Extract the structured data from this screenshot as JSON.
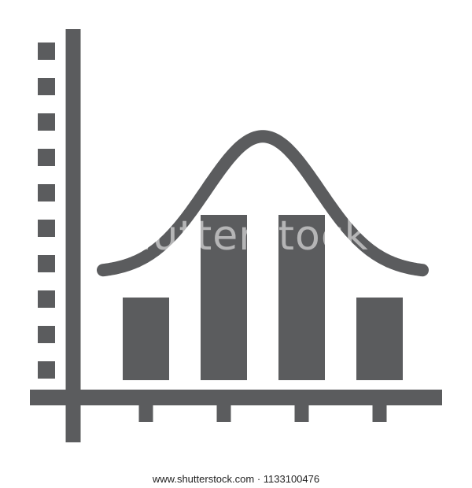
{
  "colors": {
    "icon": "#5b5c5e",
    "background": "#ffffff",
    "watermark_text": "#222222"
  },
  "chart_data": {
    "type": "bar",
    "categories": [
      "",
      "",
      "",
      ""
    ],
    "values": [
      2,
      4,
      4,
      2
    ],
    "ylim": [
      0,
      4.8
    ],
    "grid": false,
    "legend": "none",
    "y_ticks": [
      1,
      2,
      3,
      4,
      5,
      6,
      7,
      8,
      9,
      10
    ],
    "overlay_curve": {
      "type": "normal",
      "mean": 2.5,
      "peak": 5.9,
      "baseline": 2.6
    }
  },
  "watermark": {
    "overlay": "shutterstock",
    "footer": "www.shutterstock.com · 1133100476"
  }
}
